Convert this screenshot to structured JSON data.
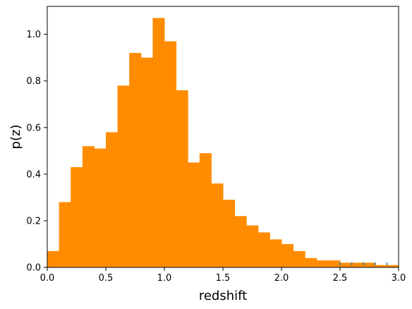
{
  "chart_data": {
    "type": "bar",
    "title": "",
    "xlabel": "redshift",
    "ylabel": "p(z)",
    "xlim": [
      0.0,
      3.0
    ],
    "ylim": [
      0.0,
      1.12
    ],
    "grid": false,
    "bar_color": "#ff8c00",
    "tick_color": "#1f77b4",
    "x_ticks": [
      0.0,
      0.5,
      1.0,
      1.5,
      2.0,
      2.5,
      3.0
    ],
    "x_tick_labels": [
      "0.0",
      "0.5",
      "1.0",
      "1.5",
      "2.0",
      "2.5",
      "3.0"
    ],
    "y_ticks": [
      0.0,
      0.2,
      0.4,
      0.6,
      0.8,
      1.0
    ],
    "y_tick_labels": [
      "0.0",
      "0.2",
      "0.4",
      "0.6",
      "0.8",
      "1.0"
    ],
    "bin_edges": [
      0.0,
      0.1,
      0.2,
      0.3,
      0.4,
      0.5,
      0.6,
      0.7,
      0.8,
      0.9,
      1.0,
      1.1,
      1.2,
      1.3,
      1.4,
      1.5,
      1.6,
      1.7,
      1.8,
      1.9,
      2.0,
      2.1,
      2.2,
      2.3,
      2.4,
      2.5,
      2.6,
      2.7,
      2.8,
      2.9,
      3.0
    ],
    "values": [
      0.07,
      0.28,
      0.43,
      0.52,
      0.51,
      0.58,
      0.78,
      0.92,
      0.9,
      1.07,
      0.97,
      0.76,
      0.45,
      0.49,
      0.36,
      0.29,
      0.22,
      0.18,
      0.15,
      0.12,
      0.1,
      0.07,
      0.04,
      0.03,
      0.03,
      0.02,
      0.02,
      0.02,
      0.01,
      0.01
    ]
  }
}
